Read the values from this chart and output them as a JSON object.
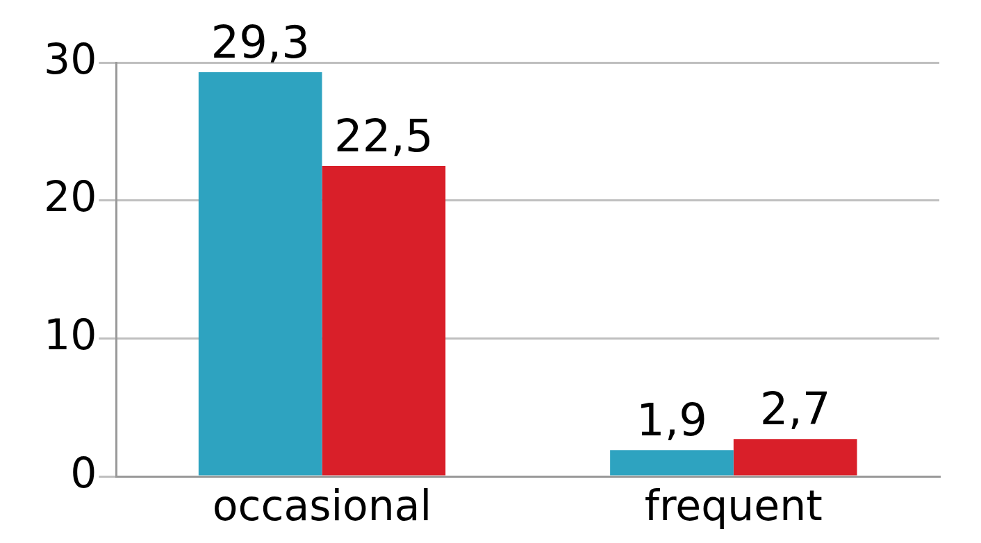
{
  "chart_data": {
    "type": "bar",
    "categories": [
      "occasional",
      "frequent"
    ],
    "series": [
      {
        "color": "#2ea3c0",
        "values": [
          29.3,
          1.9
        ],
        "value_labels": [
          "29,3",
          "1,9"
        ]
      },
      {
        "color": "#d91f29",
        "values": [
          22.5,
          2.7
        ],
        "value_labels": [
          "22,5",
          "2,7"
        ]
      }
    ],
    "ylim": [
      0,
      30
    ],
    "yticks": [
      0,
      10,
      20,
      30
    ],
    "grid": "y"
  }
}
